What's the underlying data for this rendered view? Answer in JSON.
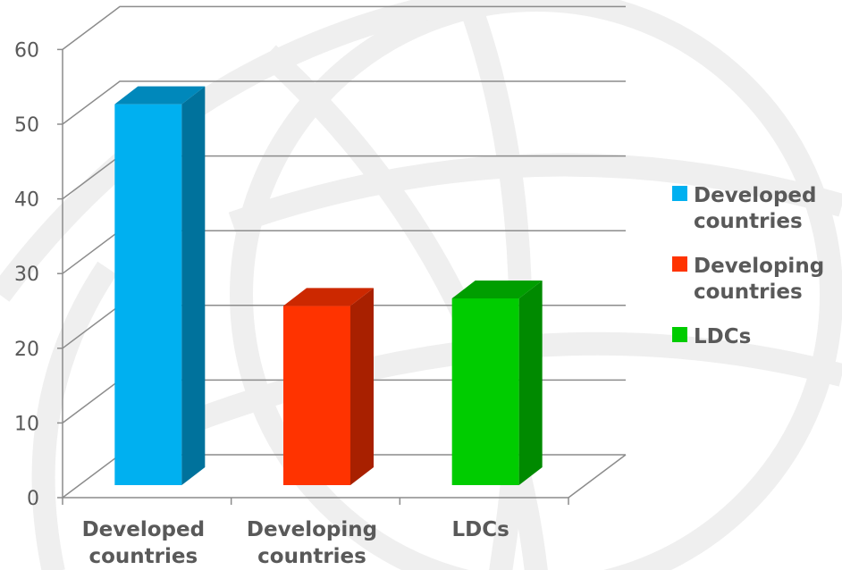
{
  "chart_data": {
    "type": "bar",
    "title": "",
    "xlabel": "",
    "ylabel": "",
    "categories": [
      "Developed countries",
      "Developing countries",
      "LDCs"
    ],
    "category_label_lines": [
      [
        "Developed",
        "countries"
      ],
      [
        "Developing",
        "countries"
      ],
      [
        "LDCs"
      ]
    ],
    "values": [
      51,
      24,
      25
    ],
    "ylim": [
      0,
      60
    ],
    "yticks": [
      0,
      10,
      20,
      30,
      40,
      50,
      60
    ],
    "grid": true,
    "three_d": true,
    "legend_position": "right",
    "legend": [
      {
        "lines": [
          "Developed",
          "countries"
        ],
        "color": "#00b0f0"
      },
      {
        "lines": [
          "Developing",
          "countries"
        ],
        "color": "#ff3300"
      },
      {
        "lines": [
          "LDCs"
        ],
        "color": "#00cc00"
      }
    ],
    "colors": {
      "fronts": [
        "#00b0f0",
        "#ff3300",
        "#00cc00"
      ],
      "sides": [
        "#00729c",
        "#a82000",
        "#008a00"
      ],
      "tops": [
        "#0088bb",
        "#cc2800",
        "#009e00"
      ],
      "grid": "#8c8c8c",
      "watermark": "#efefef"
    }
  }
}
